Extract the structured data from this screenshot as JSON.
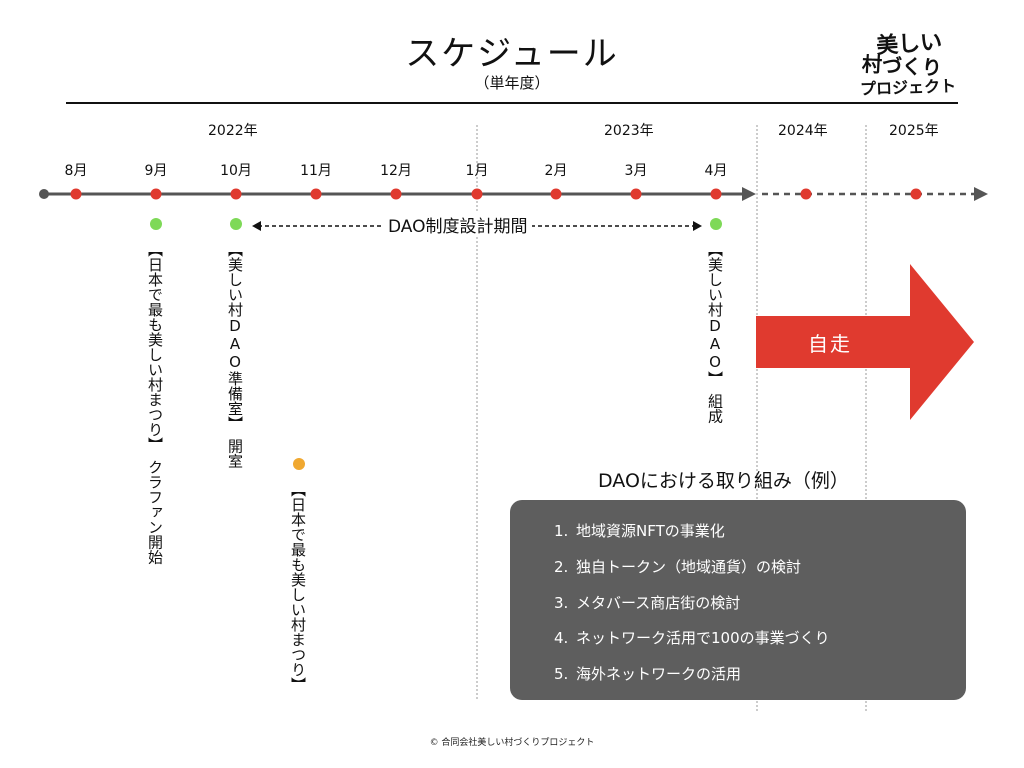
{
  "header": {
    "title": "スケジュール",
    "subtitle": "（単年度）",
    "logo_text": "美しい村づくりプロジェクト"
  },
  "timeline": {
    "years": [
      "2022年",
      "2023年",
      "2024年",
      "2025年"
    ],
    "months": [
      "8月",
      "9月",
      "10月",
      "11月",
      "12月",
      "1月",
      "2月",
      "3月",
      "4月"
    ],
    "period_label": "DAO制度設計期間",
    "future_label": "自走"
  },
  "events": [
    {
      "text": "【日本で最も美しい村まつり】　クラファン開始",
      "marker_color": "#7ed957"
    },
    {
      "text": "【美しい村DAO準備室】　開室",
      "marker_color": "#7ed957"
    },
    {
      "text": "【日本で最も美しい村まつり】",
      "marker_color": "#f0a830"
    },
    {
      "text": "【美しい村DAO】　組成",
      "marker_color": "#7ed957"
    }
  ],
  "examples": {
    "title": "DAOにおける取り組み（例）",
    "items": [
      {
        "num": "1.",
        "text": "地域資源NFTの事業化"
      },
      {
        "num": "2.",
        "text": "独自トークン（地域通貨）の検討"
      },
      {
        "num": "3.",
        "text": "メタバース商店街の検討"
      },
      {
        "num": "4.",
        "text": "ネットワーク活用で100の事業づくり"
      },
      {
        "num": "5.",
        "text": "海外ネットワークの活用"
      }
    ]
  },
  "footer": "© 合同会社美しい村づくりプロジェクト",
  "colors": {
    "timeline_dot": "#e03a2f",
    "arrow": "#e03a2f",
    "box": "#5e5e5e",
    "green_marker": "#7ed957",
    "orange_marker": "#f0a830"
  }
}
